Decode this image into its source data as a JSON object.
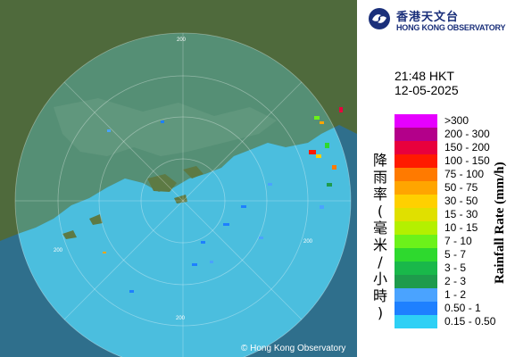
{
  "header": {
    "org_name_cn": "香港天文台",
    "org_name_en": "HONG KONG OBSERVATORY"
  },
  "timestamp": {
    "time": "21:48 HKT",
    "date": "12-05-2025"
  },
  "map": {
    "range_labels": [
      "200",
      "200",
      "200",
      "200"
    ],
    "copyright": "© Hong Kong Observatory",
    "colors": {
      "sea": "#2f6f8c",
      "land": "#4f6a3c",
      "coverage": "#62dcf0"
    }
  },
  "legend": {
    "title_cn": "降雨率(毫米/小時)",
    "title_en": "Rainfall Rate (mm/h)",
    "items": [
      {
        "label": ">300",
        "color": "#e600ff"
      },
      {
        "label": "200 - 300",
        "color": "#b3008a"
      },
      {
        "label": "150 - 200",
        "color": "#e8003d"
      },
      {
        "label": "100 - 150",
        "color": "#ff1a00"
      },
      {
        "label": "75 - 100",
        "color": "#ff7a00"
      },
      {
        "label": "50 - 75",
        "color": "#ffa500"
      },
      {
        "label": "30 - 50",
        "color": "#ffd000"
      },
      {
        "label": "15 - 30",
        "color": "#e0e000"
      },
      {
        "label": "10 - 15",
        "color": "#b4f000"
      },
      {
        "label": "7 - 10",
        "color": "#6cf21a"
      },
      {
        "label": "5 - 7",
        "color": "#2ed92e"
      },
      {
        "label": "3 - 5",
        "color": "#19b84a"
      },
      {
        "label": "2 - 3",
        "color": "#1e9b4c"
      },
      {
        "label": "1 - 2",
        "color": "#4aa3ff"
      },
      {
        "label": "0.50 - 1",
        "color": "#1e80ff"
      },
      {
        "label": "0.15 - 0.50",
        "color": "#2ed0f5"
      }
    ]
  }
}
